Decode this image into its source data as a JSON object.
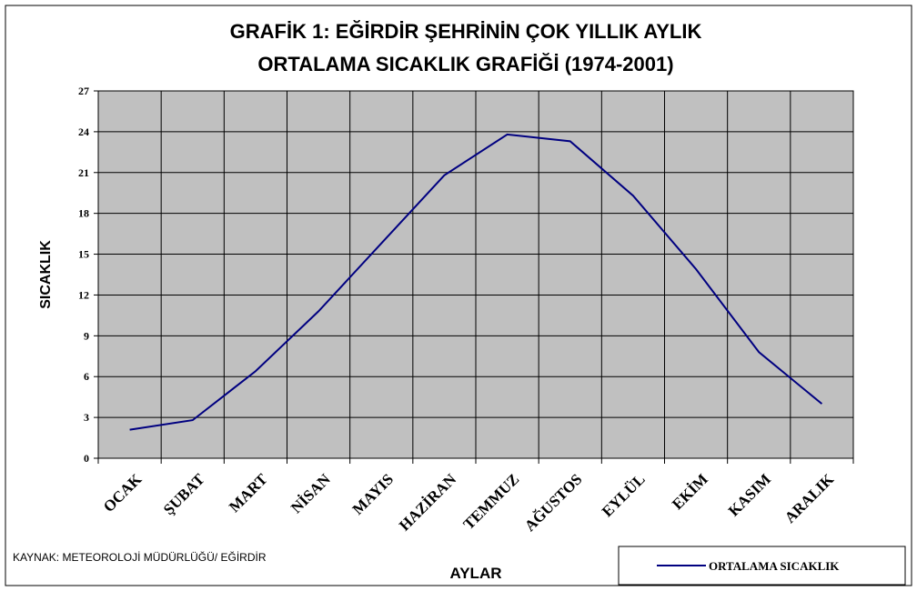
{
  "chart_data": {
    "type": "line",
    "title": [
      "GRAFİK 1: EĞİRDİR ŞEHRİNİN ÇOK YILLIK AYLIK",
      "ORTALAMA SICAKLIK GRAFİĞİ (1974-2001)"
    ],
    "x_label": "AYLAR",
    "y_label": "SICAKLIK",
    "annotation": "KAYNAK: METEOROLOJİ MÜDÜRLÜĞÜ/ EĞİRDİR",
    "categories": [
      "OCAK",
      "ŞUBAT",
      "MART",
      "NİSAN",
      "MAYIS",
      "HAZİRAN",
      "TEMMUZ",
      "AĞUSTOS",
      "EYLÜL",
      "EKİM",
      "KASIM",
      "ARALIK"
    ],
    "series": [
      {
        "name": "ORTALAMA SICAKLIK",
        "color": "#000080",
        "values": [
          2.1,
          2.8,
          6.4,
          10.8,
          15.8,
          20.8,
          23.8,
          23.3,
          19.3,
          13.9,
          7.8,
          4.0
        ]
      }
    ],
    "ylim": [
      0,
      27
    ],
    "yticks": [
      0,
      3,
      6,
      9,
      12,
      15,
      18,
      21,
      24,
      27
    ],
    "grid": true,
    "legend": "bottom-right"
  }
}
